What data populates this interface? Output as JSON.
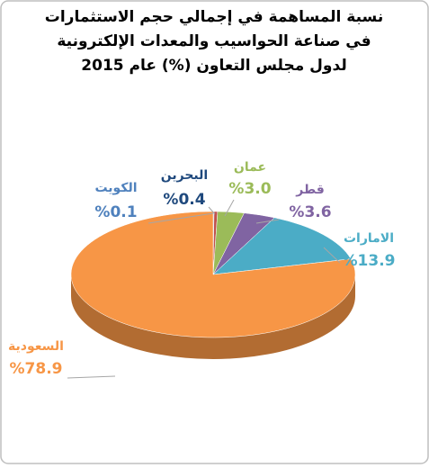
{
  "chart_data": {
    "type": "pie3d",
    "title": [
      "نسبة المساهمة في إجمالي حجم الاستثمارات",
      "في صناعة الحواسيب والمعدات الإلكترونية",
      "لدول مجلس التعاون (%) عام 2015"
    ],
    "categories": [
      "الكويت",
      "البحرين",
      "عمان",
      "قطر",
      "الامارات",
      "السعودية"
    ],
    "values": [
      0.1,
      0.4,
      3.0,
      3.6,
      13.9,
      78.9
    ],
    "value_labels": [
      "%0.1",
      "%0.4",
      "%3.0",
      "%3.6",
      "%13.9",
      "%78.9"
    ],
    "colors": [
      "#4f81bd",
      "#c0504d",
      "#9bbb59",
      "#8064a2",
      "#4bacc6",
      "#f79646"
    ],
    "label_colors": [
      "#4f81bd",
      "#1f497d",
      "#9bbb59",
      "#8064a2",
      "#4bacc6",
      "#f79646"
    ]
  }
}
